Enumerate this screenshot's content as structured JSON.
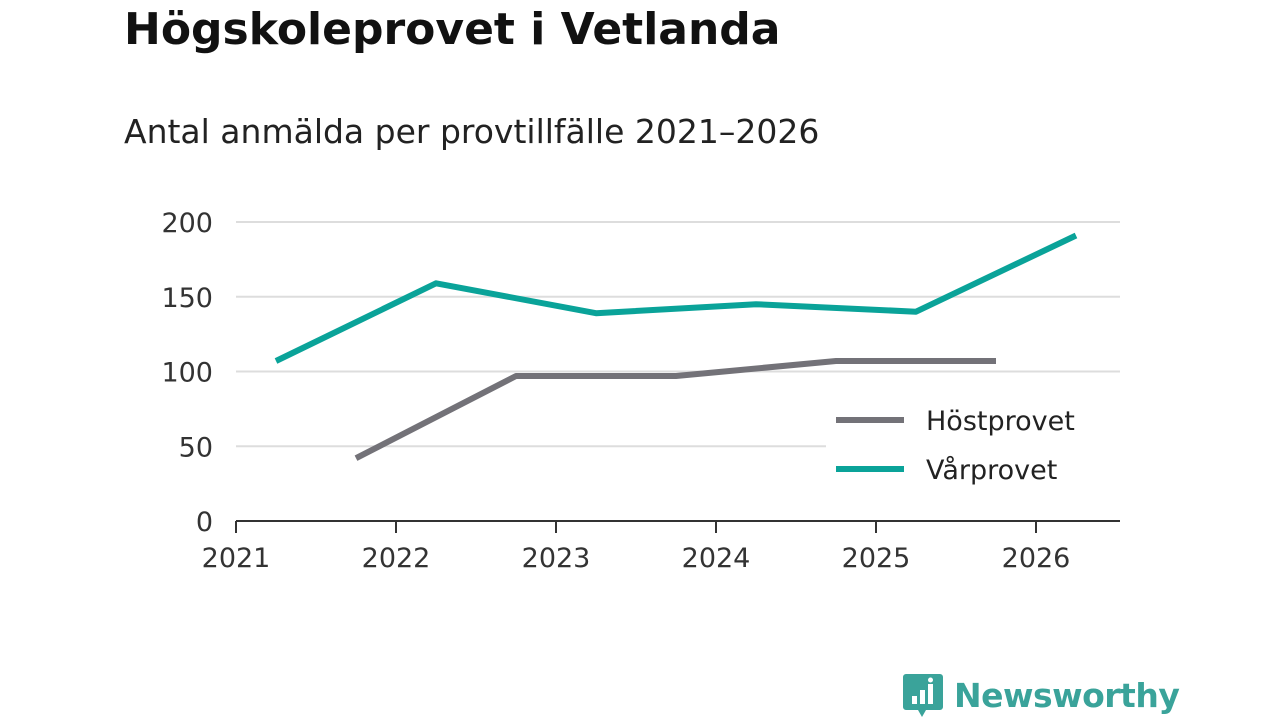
{
  "title": "Högskoleprovet i Vetlanda",
  "subtitle": "Antal anmälda per provtillfälle 2021–2026",
  "brand": "Newsworthy",
  "colors": {
    "hostprovet": "#737278",
    "varprovet": "#0aa399",
    "grid": "#dddddd",
    "axis": "#333333",
    "brand": "#3aa39a"
  },
  "chart_data": {
    "type": "line",
    "title": "Högskoleprovet i Vetlanda",
    "subtitle": "Antal anmälda per provtillfälle 2021–2026",
    "xlabel": "",
    "ylabel": "",
    "xlim": [
      2021,
      2026.5
    ],
    "ylim": [
      0,
      200
    ],
    "x_ticks": [
      "2021",
      "2022",
      "2023",
      "2024",
      "2025",
      "2026"
    ],
    "y_ticks": [
      "0",
      "50",
      "100",
      "150",
      "200"
    ],
    "grid": true,
    "legend_position": "bottom-right",
    "series": [
      {
        "name": "Höstprovet",
        "x": [
          2021.75,
          2022.75,
          2023.75,
          2024.75,
          2025.75
        ],
        "values": [
          42,
          97,
          97,
          107,
          107
        ]
      },
      {
        "name": "Vårprovet",
        "x": [
          2021.25,
          2022.25,
          2023.25,
          2024.25,
          2025.25,
          2026.25
        ],
        "values": [
          107,
          159,
          139,
          145,
          140,
          191
        ]
      }
    ]
  }
}
